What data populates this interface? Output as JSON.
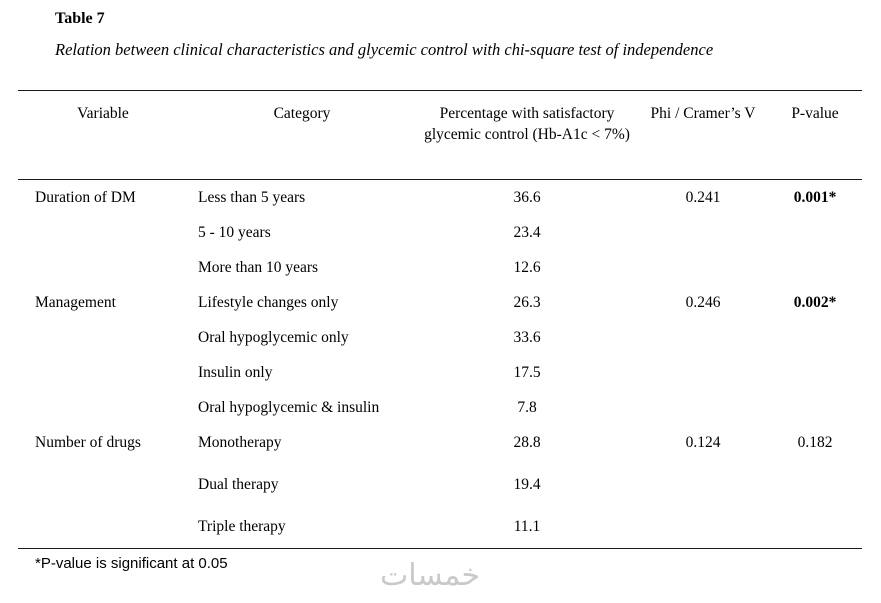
{
  "title": "Table 7",
  "subtitle": "Relation between clinical characteristics and glycemic control with chi-square test of independence",
  "table": {
    "headers": {
      "variable": "Variable",
      "category": "Category",
      "percentage": "Percentage with satisfactory glycemic control (Hb-A1c < 7%)",
      "phi": "Phi / Cramer’s V",
      "p_value": "P-value"
    },
    "rows": [
      {
        "variable": "Duration of DM",
        "category": "Less than 5 years",
        "percentage": "36.6",
        "phi": "0.241",
        "p_value": "0.001*"
      },
      {
        "variable": "",
        "category": "5 - 10 years",
        "percentage": "23.4",
        "phi": "",
        "p_value": ""
      },
      {
        "variable": "",
        "category": "More than 10 years",
        "percentage": "12.6",
        "phi": "",
        "p_value": ""
      },
      {
        "variable": "Management",
        "category": "Lifestyle changes only",
        "percentage": "26.3",
        "phi": "0.246",
        "p_value": "0.002*"
      },
      {
        "variable": "",
        "category": "Oral hypoglycemic only",
        "percentage": "33.6",
        "phi": "",
        "p_value": ""
      },
      {
        "variable": "",
        "category": "Insulin only",
        "percentage": "17.5",
        "phi": "",
        "p_value": ""
      },
      {
        "variable": "",
        "category": "Oral hypoglycemic & insulin",
        "percentage": "7.8",
        "phi": "",
        "p_value": ""
      },
      {
        "variable": "Number of drugs",
        "category": "Monotherapy",
        "percentage": "28.8",
        "phi": "0.124",
        "p_value": "0.182"
      },
      {
        "variable": "",
        "category": "Dual therapy",
        "percentage": "19.4",
        "phi": "",
        "p_value": ""
      },
      {
        "variable": "",
        "category": "Triple therapy",
        "percentage": "11.1",
        "phi": "",
        "p_value": ""
      }
    ]
  },
  "footnote": "*P-value is significant at 0.05",
  "watermark": "خمسات",
  "chart_data": {
    "type": "table",
    "title": "Relation between clinical characteristics and glycemic control with chi-square test of independence",
    "columns": [
      "Variable",
      "Category",
      "Percentage with satisfactory glycemic control (Hb-A1c < 7%)",
      "Phi / Cramer's V",
      "P-value"
    ],
    "rows": [
      [
        "Duration of DM",
        "Less than 5 years",
        36.6,
        0.241,
        "0.001*"
      ],
      [
        "",
        "5 - 10 years",
        23.4,
        null,
        null
      ],
      [
        "",
        "More than 10 years",
        12.6,
        null,
        null
      ],
      [
        "Management",
        "Lifestyle changes only",
        26.3,
        0.246,
        "0.002*"
      ],
      [
        "",
        "Oral hypoglycemic only",
        33.6,
        null,
        null
      ],
      [
        "",
        "Insulin only",
        17.5,
        null,
        null
      ],
      [
        "",
        "Oral hypoglycemic & insulin",
        7.8,
        null,
        null
      ],
      [
        "Number of drugs",
        "Monotherapy",
        28.8,
        0.124,
        "0.182"
      ],
      [
        "",
        "Dual therapy",
        19.4,
        null,
        null
      ],
      [
        "",
        "Triple therapy",
        11.1,
        null,
        null
      ]
    ]
  }
}
